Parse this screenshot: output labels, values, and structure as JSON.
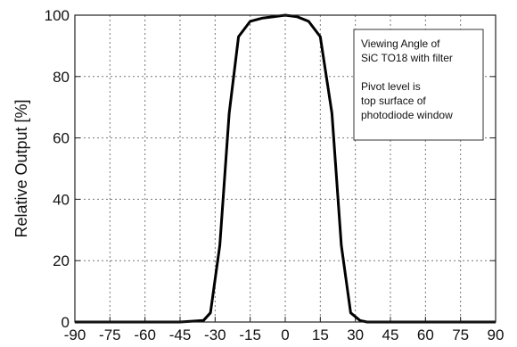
{
  "chart_data": {
    "type": "line",
    "title": "",
    "xlabel": "",
    "ylabel": "Relative Output [%]",
    "xlim": [
      -90,
      90
    ],
    "ylim": [
      0,
      100
    ],
    "x_ticks": [
      -90,
      -75,
      -60,
      -45,
      -30,
      -15,
      0,
      15,
      30,
      45,
      60,
      75,
      90
    ],
    "y_ticks": [
      0,
      20,
      40,
      60,
      80,
      100
    ],
    "grid": true,
    "legend": "none",
    "annotation_lines": [
      "Viewing Angle of",
      "SiC TO18 with filter",
      "",
      "Pivot level is",
      "top surface of",
      "photodiode window"
    ],
    "annotation_position": "top-right",
    "series": [
      {
        "color": "#000000",
        "x": [
          -90,
          -45,
          -35,
          -32,
          -28,
          -24,
          -20,
          -15,
          -10,
          -5,
          0,
          5,
          10,
          15,
          20,
          24,
          28,
          32,
          35,
          45,
          90
        ],
        "y": [
          0,
          0,
          0.5,
          3,
          25,
          68,
          93,
          98,
          99,
          99.5,
          100,
          99.5,
          98,
          93,
          68,
          25,
          3,
          0.5,
          0,
          0,
          0
        ]
      }
    ]
  }
}
